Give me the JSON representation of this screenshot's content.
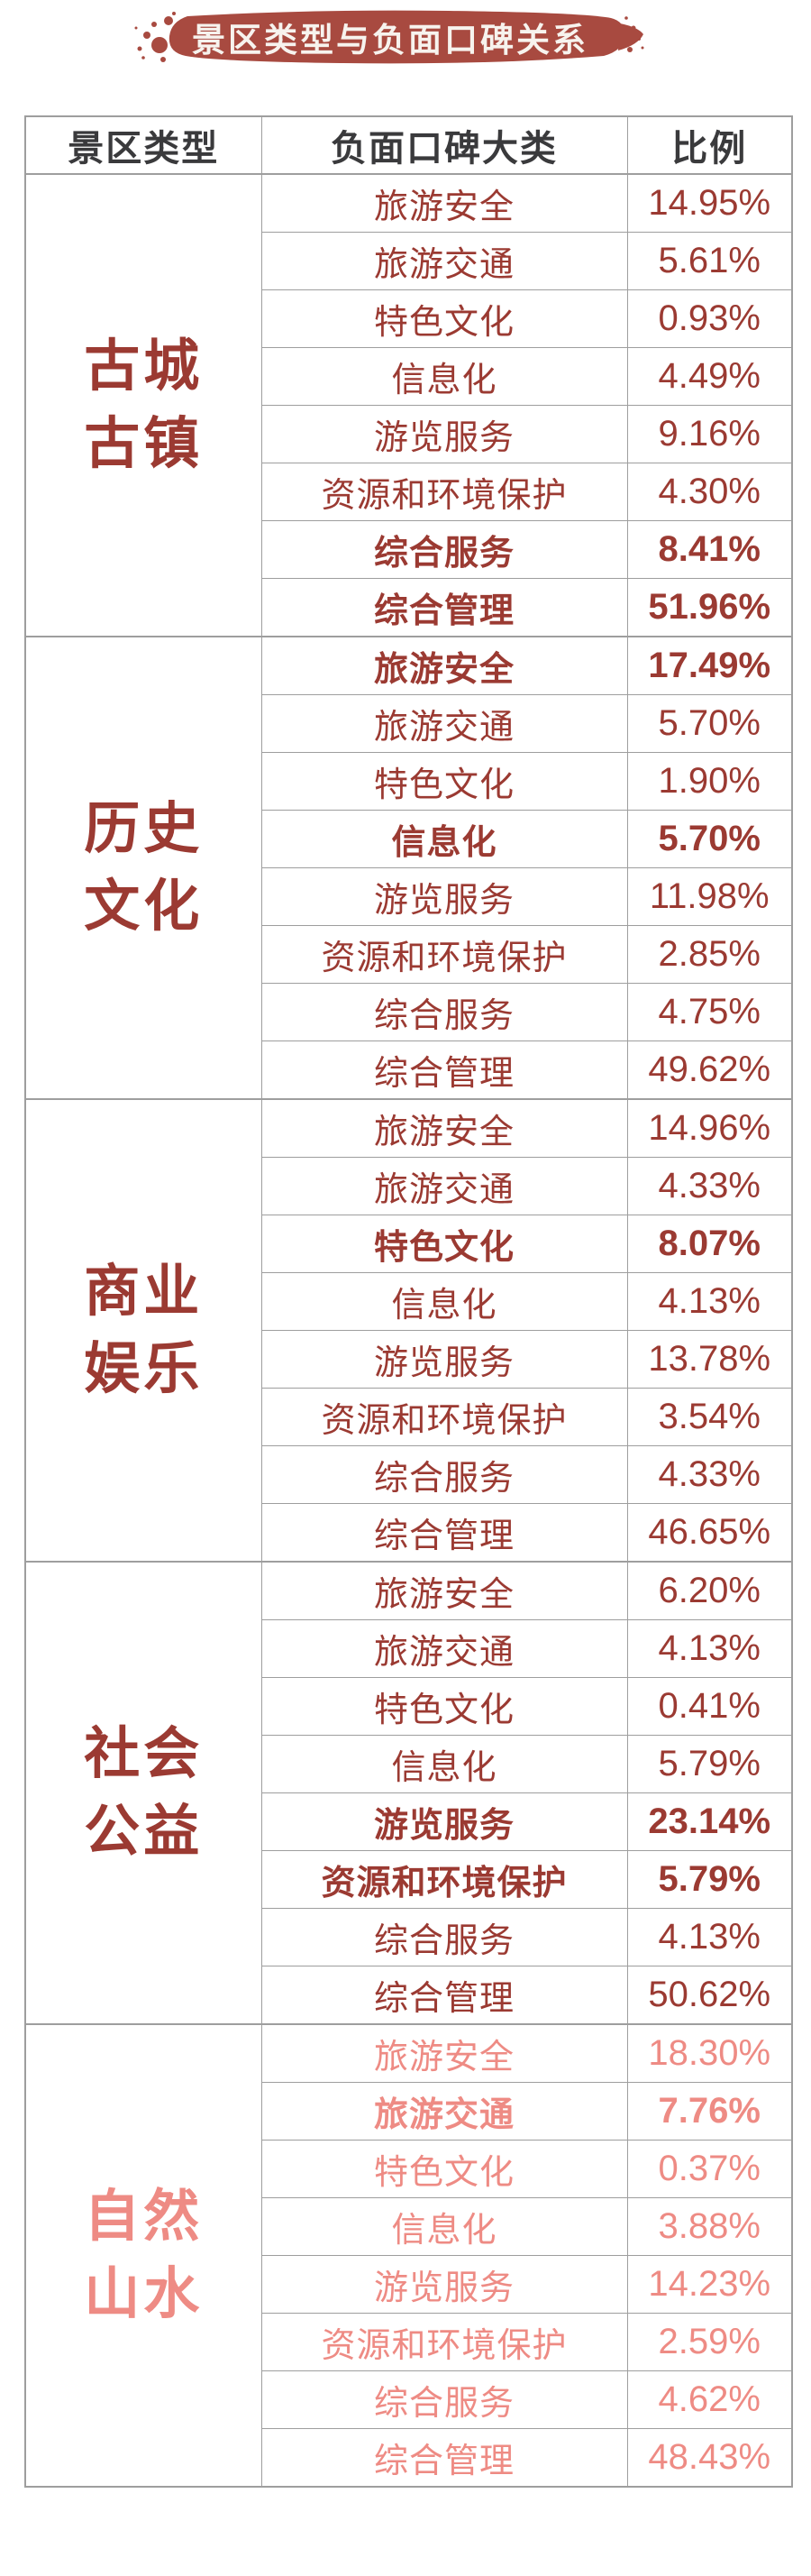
{
  "banner": {
    "title": "景区类型与负面口碑关系",
    "bg_color": "#a84a40",
    "text_color": "#f7f3ee"
  },
  "colors": {
    "dark_red": "#9b3a32",
    "light_red": "#ee8b84",
    "header_text": "#3a3a3c",
    "border": "#9e9e9e"
  },
  "chart_data": {
    "type": "table",
    "title": "景区类型与负面口碑关系",
    "columns": [
      "景区类型",
      "负面口碑大类",
      "比例"
    ],
    "groups": [
      {
        "category": "古城古镇",
        "category_lines": [
          "古城",
          "古镇"
        ],
        "tone": "dark",
        "rows": [
          {
            "label": "旅游安全",
            "value": "14.95%",
            "bold": false
          },
          {
            "label": "旅游交通",
            "value": "5.61%",
            "bold": false
          },
          {
            "label": "特色文化",
            "value": "0.93%",
            "bold": false
          },
          {
            "label": "信息化",
            "value": "4.49%",
            "bold": false
          },
          {
            "label": "游览服务",
            "value": "9.16%",
            "bold": false
          },
          {
            "label": "资源和环境保护",
            "value": "4.30%",
            "bold": false
          },
          {
            "label": "综合服务",
            "value": "8.41%",
            "bold": true
          },
          {
            "label": "综合管理",
            "value": "51.96%",
            "bold": true
          }
        ]
      },
      {
        "category": "历史文化",
        "category_lines": [
          "历史",
          "文化"
        ],
        "tone": "dark",
        "rows": [
          {
            "label": "旅游安全",
            "value": "17.49%",
            "bold": true
          },
          {
            "label": "旅游交通",
            "value": "5.70%",
            "bold": false
          },
          {
            "label": "特色文化",
            "value": "1.90%",
            "bold": false
          },
          {
            "label": "信息化",
            "value": "5.70%",
            "bold": true
          },
          {
            "label": "游览服务",
            "value": "11.98%",
            "bold": false
          },
          {
            "label": "资源和环境保护",
            "value": "2.85%",
            "bold": false
          },
          {
            "label": "综合服务",
            "value": "4.75%",
            "bold": false
          },
          {
            "label": "综合管理",
            "value": "49.62%",
            "bold": false
          }
        ]
      },
      {
        "category": "商业娱乐",
        "category_lines": [
          "商业",
          "娱乐"
        ],
        "tone": "dark",
        "rows": [
          {
            "label": "旅游安全",
            "value": "14.96%",
            "bold": false
          },
          {
            "label": "旅游交通",
            "value": "4.33%",
            "bold": false
          },
          {
            "label": "特色文化",
            "value": "8.07%",
            "bold": true
          },
          {
            "label": "信息化",
            "value": "4.13%",
            "bold": false
          },
          {
            "label": "游览服务",
            "value": "13.78%",
            "bold": false
          },
          {
            "label": "资源和环境保护",
            "value": "3.54%",
            "bold": false
          },
          {
            "label": "综合服务",
            "value": "4.33%",
            "bold": false
          },
          {
            "label": "综合管理",
            "value": "46.65%",
            "bold": false
          }
        ]
      },
      {
        "category": "社会公益",
        "category_lines": [
          "社会",
          "公益"
        ],
        "tone": "dark",
        "rows": [
          {
            "label": "旅游安全",
            "value": "6.20%",
            "bold": false
          },
          {
            "label": "旅游交通",
            "value": "4.13%",
            "bold": false
          },
          {
            "label": "特色文化",
            "value": "0.41%",
            "bold": false
          },
          {
            "label": "信息化",
            "value": "5.79%",
            "bold": false
          },
          {
            "label": "游览服务",
            "value": "23.14%",
            "bold": true
          },
          {
            "label": "资源和环境保护",
            "value": "5.79%",
            "bold": true
          },
          {
            "label": "综合服务",
            "value": "4.13%",
            "bold": false
          },
          {
            "label": "综合管理",
            "value": "50.62%",
            "bold": false
          }
        ]
      },
      {
        "category": "自然山水",
        "category_lines": [
          "自然",
          "山水"
        ],
        "tone": "light",
        "rows": [
          {
            "label": "旅游安全",
            "value": "18.30%",
            "bold": false
          },
          {
            "label": "旅游交通",
            "value": "7.76%",
            "bold": true
          },
          {
            "label": "特色文化",
            "value": "0.37%",
            "bold": false
          },
          {
            "label": "信息化",
            "value": "3.88%",
            "bold": false
          },
          {
            "label": "游览服务",
            "value": "14.23%",
            "bold": false
          },
          {
            "label": "资源和环境保护",
            "value": "2.59%",
            "bold": false
          },
          {
            "label": "综合服务",
            "value": "4.62%",
            "bold": false
          },
          {
            "label": "综合管理",
            "value": "48.43%",
            "bold": false
          }
        ]
      }
    ]
  }
}
